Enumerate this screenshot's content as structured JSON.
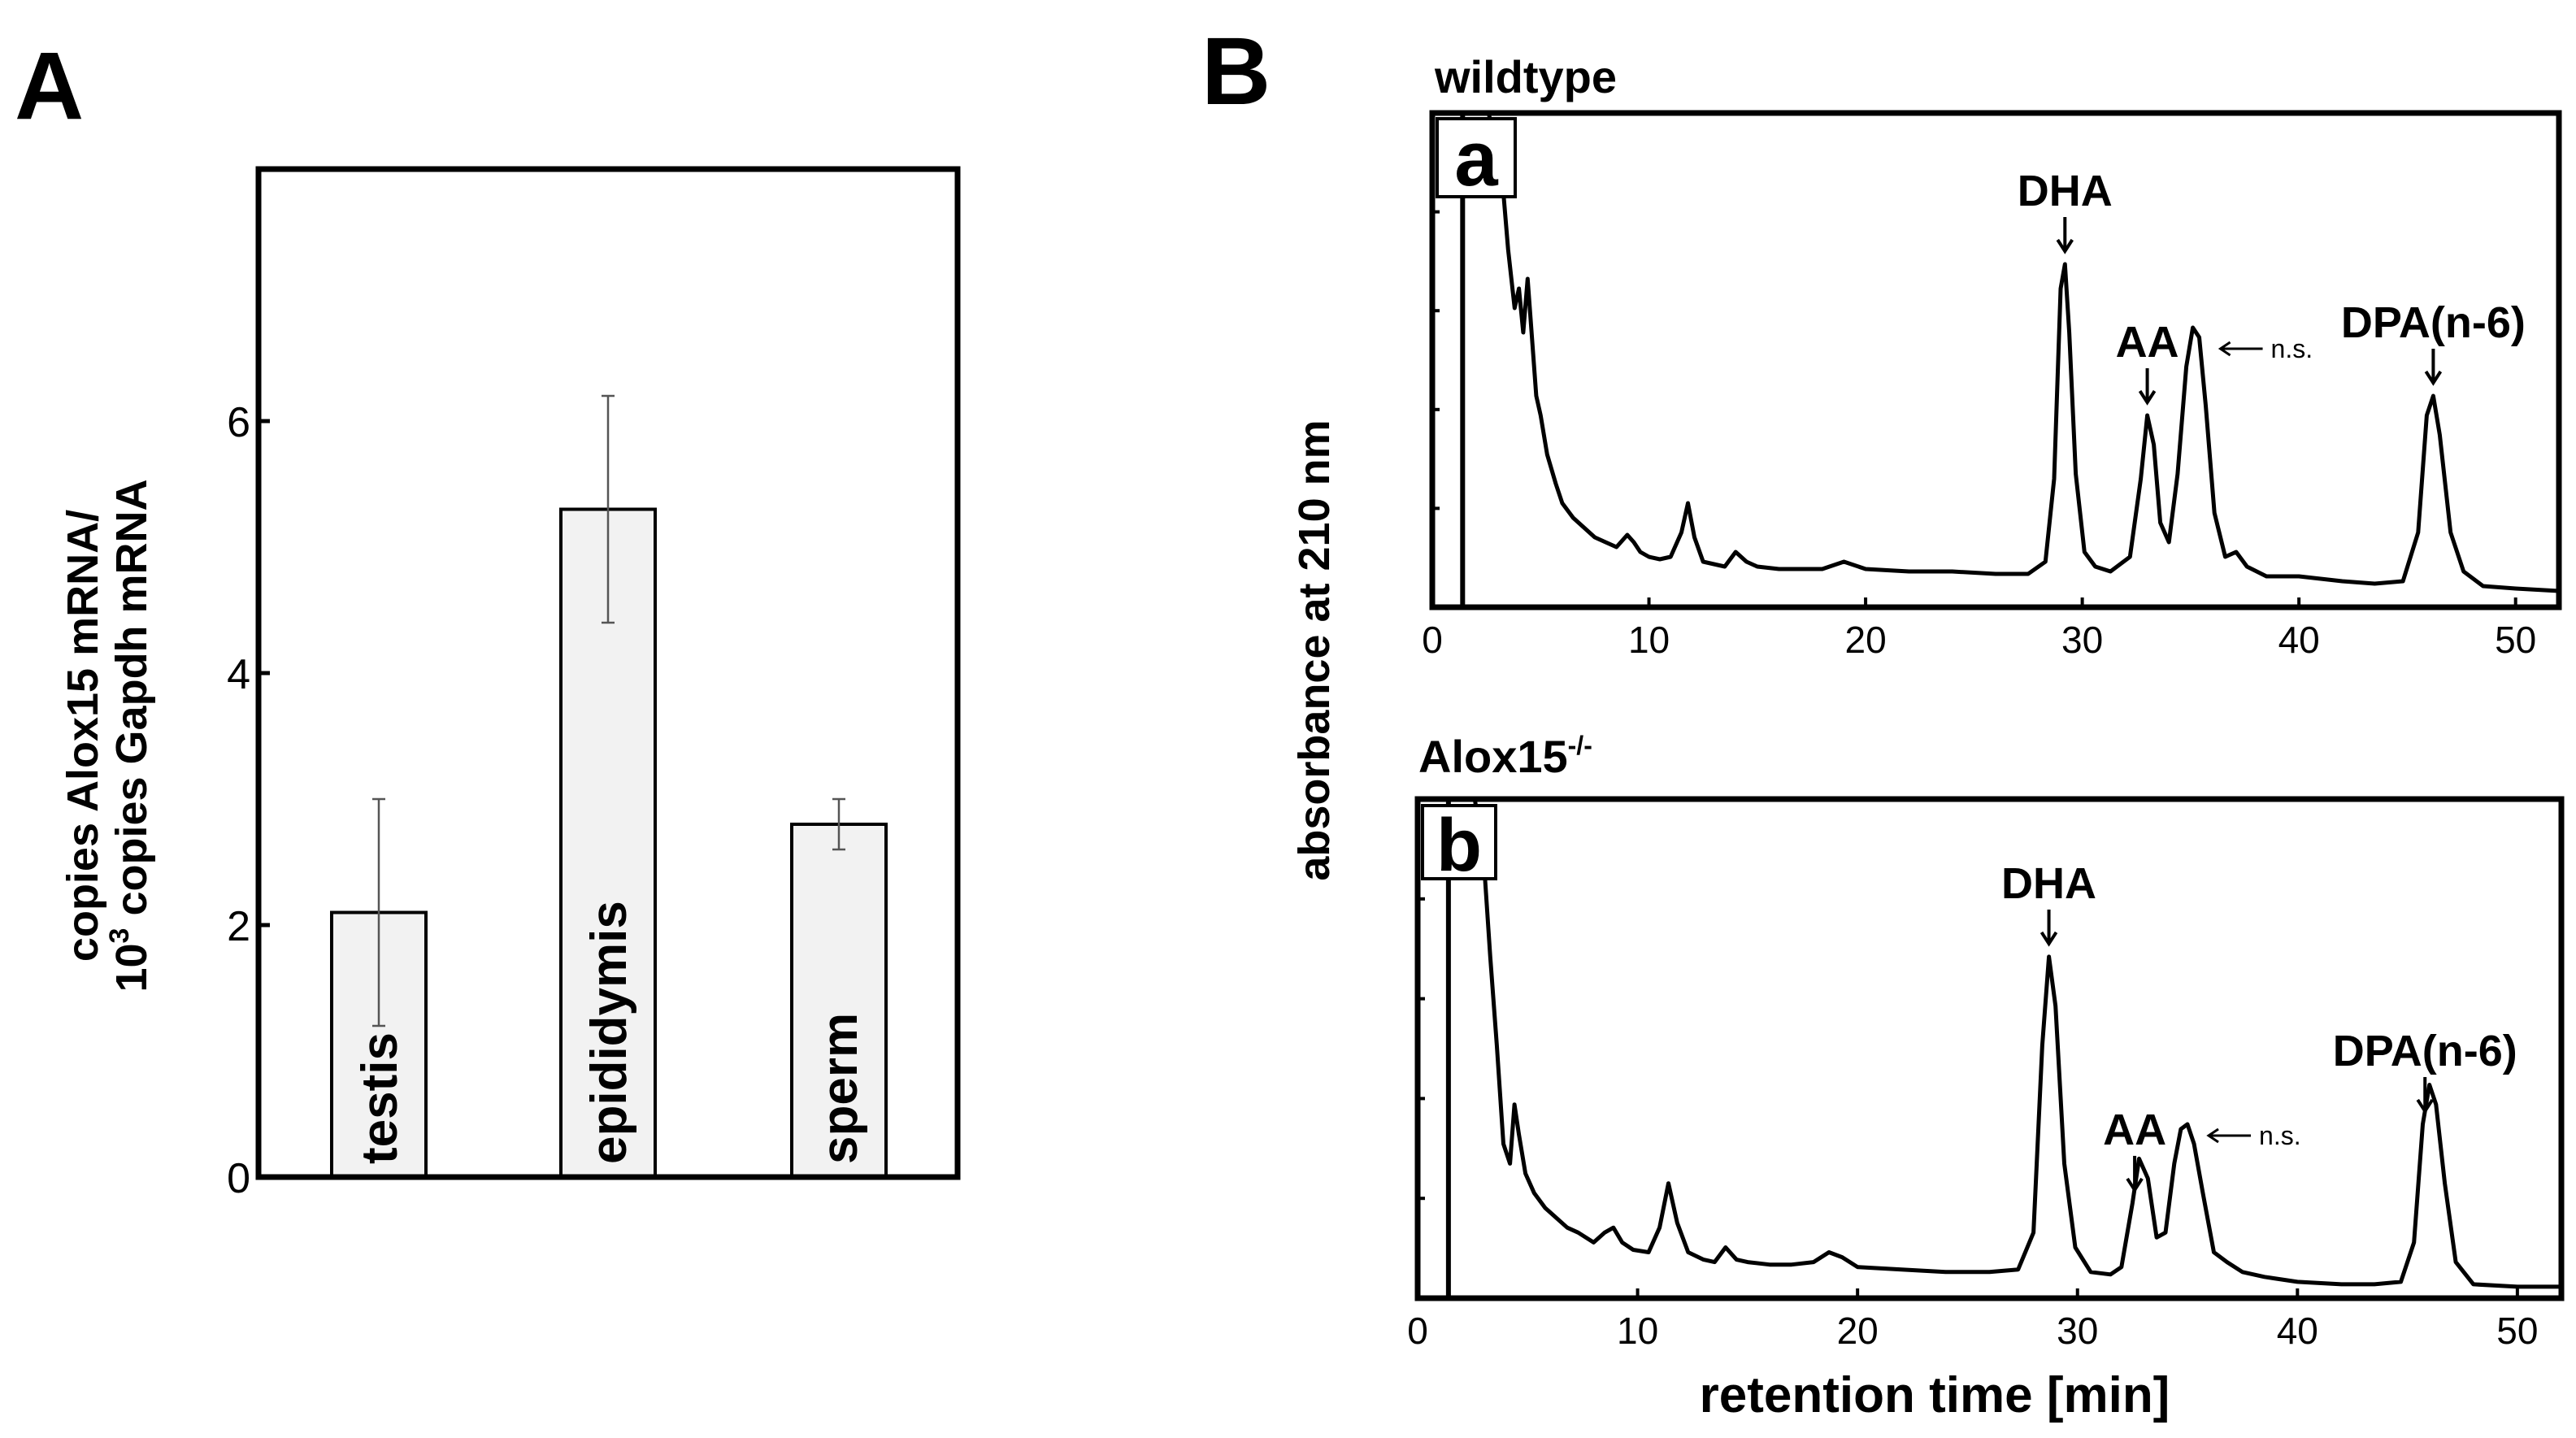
{
  "panel_A": {
    "label": "A",
    "ylabel_line1": "copies Alox15 mRNA/",
    "ylabel_line2_base": "10",
    "ylabel_line2_sup": "3",
    "ylabel_line2_rest": " copies Gapdh mRNA"
  },
  "panel_B": {
    "label": "B",
    "ylabel": "absorbance at 210 nm",
    "xlabel": "retention time [min]",
    "sub_a": {
      "letter": "a",
      "title": "wildtype"
    },
    "sub_b": {
      "letter": "b",
      "title_base": "Alox15",
      "title_sup": "-/-"
    }
  },
  "chart_data": [
    {
      "type": "bar",
      "title": "",
      "categories": [
        "testis",
        "epididymis",
        "sperm"
      ],
      "values": [
        2.1,
        5.3,
        2.8
      ],
      "errors": [
        0.9,
        0.9,
        0.2
      ],
      "ylim": [
        0,
        8
      ],
      "yticks": [
        0,
        2,
        4,
        6
      ],
      "ytick_labels": [
        "0",
        "2",
        "4",
        "6"
      ],
      "ylabel": "copies Alox15 mRNA/ 10^3 copies Gapdh mRNA",
      "colors": {
        "bar": "#f2f2f2",
        "edge": "#000000"
      }
    },
    {
      "type": "line",
      "title": "wildtype",
      "panel": "a",
      "xlim": [
        0,
        52
      ],
      "ylim": [
        0,
        100
      ],
      "xticks": [
        0,
        10,
        20,
        30,
        40,
        50
      ],
      "xtick_labels": [
        "0",
        "10",
        "20",
        "30",
        "40",
        "50"
      ],
      "ylabel": "absorbance at 210 nm",
      "series": [
        {
          "name": "wildtype",
          "x": [
            0.3,
            1.0,
            1.5,
            2.0,
            2.6,
            3.2,
            3.5,
            3.8,
            4.0,
            4.2,
            4.4,
            4.6,
            4.8,
            5.0,
            5.3,
            5.7,
            6.0,
            6.5,
            7.0,
            7.5,
            8.0,
            8.5,
            9.0,
            9.3,
            9.6,
            10.0,
            10.5,
            11.0,
            11.5,
            11.8,
            12.1,
            12.5,
            13.0,
            13.5,
            14.0,
            14.5,
            15.0,
            16.0,
            17.0,
            18.0,
            19.0,
            20.0,
            22.0,
            24.0,
            26.0,
            27.5,
            28.3,
            28.7,
            29.0,
            29.2,
            29.4,
            29.7,
            30.1,
            30.6,
            31.3,
            32.2,
            32.7,
            33.0,
            33.3,
            33.6,
            34.0,
            34.4,
            34.8,
            35.1,
            35.4,
            35.7,
            36.1,
            36.6,
            37.1,
            37.6,
            38.5,
            40.0,
            42.0,
            43.5,
            44.8,
            45.5,
            45.9,
            46.2,
            46.5,
            47.0,
            47.6,
            48.5,
            50.0,
            52.0
          ],
          "y": [
            100,
            100,
            100,
            100,
            100,
            88,
            72,
            60,
            64,
            55,
            66,
            54,
            42,
            38,
            30,
            24,
            20,
            17,
            15,
            13,
            12,
            11,
            13.5,
            12,
            10,
            9,
            8.5,
            9,
            14,
            20,
            13,
            8,
            7.5,
            7,
            10,
            8,
            7,
            6.5,
            6.5,
            6.5,
            8,
            6.5,
            6,
            6,
            5.5,
            5.5,
            8,
            25,
            64,
            69,
            55,
            26,
            10,
            7,
            6,
            9,
            25,
            38,
            32,
            16,
            12,
            26,
            48,
            56,
            54,
            40,
            18,
            9,
            10,
            7,
            5,
            5,
            4,
            3.5,
            4,
            14,
            38,
            42,
            34,
            14,
            6,
            3,
            2.5,
            2
          ]
        }
      ],
      "annotations": [
        {
          "text": "DHA",
          "x": 29.2
        },
        {
          "text": "AA",
          "x": 33.0
        },
        {
          "text": "DPA(n-6)",
          "x": 46.2
        },
        {
          "text": "n.s.",
          "x": 35.4
        }
      ]
    },
    {
      "type": "line",
      "title": "Alox15-/-",
      "panel": "b",
      "xlim": [
        0,
        52
      ],
      "ylim": [
        0,
        100
      ],
      "xticks": [
        0,
        10,
        20,
        30,
        40,
        50
      ],
      "xtick_labels": [
        "0",
        "10",
        "20",
        "30",
        "40",
        "50"
      ],
      "xlabel": "retention time [min]",
      "series": [
        {
          "name": "Alox15-/-",
          "x": [
            0.3,
            1.0,
            1.5,
            2.0,
            2.6,
            3.0,
            3.3,
            3.6,
            3.9,
            4.2,
            4.4,
            4.6,
            4.9,
            5.3,
            5.8,
            6.3,
            6.8,
            7.3,
            8.0,
            8.5,
            8.9,
            9.3,
            9.8,
            10.5,
            11.0,
            11.4,
            11.8,
            12.3,
            13.0,
            13.5,
            14.0,
            14.5,
            15.0,
            16.0,
            17.0,
            18.0,
            18.7,
            19.3,
            20.0,
            22.0,
            24.0,
            26.0,
            27.3,
            28.0,
            28.4,
            28.7,
            29.0,
            29.4,
            29.9,
            30.6,
            31.5,
            32.0,
            32.5,
            32.8,
            33.2,
            33.6,
            34.0,
            34.4,
            34.7,
            35.0,
            35.3,
            35.7,
            36.2,
            36.8,
            37.5,
            38.5,
            40.0,
            42.0,
            43.5,
            44.7,
            45.3,
            45.7,
            46.0,
            46.3,
            46.7,
            47.2,
            48.0,
            50.0,
            52.0
          ],
          "y": [
            100,
            100,
            100,
            100,
            100,
            88,
            68,
            50,
            30,
            26,
            38,
            32,
            24,
            20,
            17,
            15,
            13,
            12,
            10,
            12,
            13,
            10,
            8.5,
            8,
            13,
            22,
            14,
            8,
            6.5,
            6,
            9,
            6.5,
            6,
            5.5,
            5.5,
            6,
            8,
            7,
            5,
            4.5,
            4,
            4,
            4.5,
            12,
            50,
            68,
            58,
            26,
            9,
            4,
            3.5,
            5,
            18,
            27,
            23,
            11,
            12,
            26,
            33,
            34,
            30,
            20,
            8,
            6,
            4,
            3,
            2,
            1.5,
            1.5,
            2,
            10,
            34,
            42,
            38,
            22,
            6,
            1.5,
            1,
            1
          ]
        }
      ],
      "annotations": [
        {
          "text": "DHA",
          "x": 28.7
        },
        {
          "text": "AA",
          "x": 32.6
        },
        {
          "text": "DPA(n-6)",
          "x": 45.8
        },
        {
          "text": "n.s.",
          "x": 35.0
        }
      ]
    }
  ]
}
